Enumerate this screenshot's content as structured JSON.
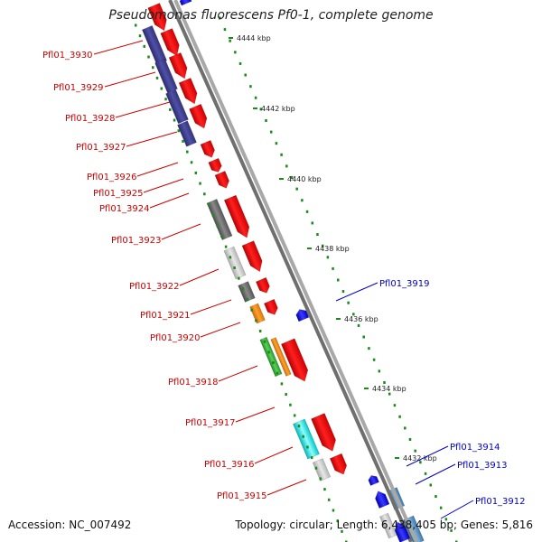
{
  "title": "Pseudomonas fluorescens Pf0-1, complete genome",
  "accession": "Accession: NC_007492",
  "summary": "Topology: circular; Length: 6,438,405 bp; Genes: 5,816",
  "scale_unit": "kbp",
  "ticks": [
    "4444 kbp",
    "4442 kbp",
    "4440 kbp",
    "4438 kbp",
    "4436 kbp",
    "4434 kbp",
    "4432 kbp"
  ],
  "colors": {
    "forward_label": "#cc0000",
    "reverse_label": "#0000cc",
    "forward_gene": "#ff0000",
    "reverse_gene": "#1a1aff",
    "cog_purple": "#3d3d8f",
    "cog_gray": "#6b6b6b",
    "cog_lightgray": "#c8c8c8",
    "cog_orange": "#ff8c00",
    "cog_green": "#3cb43c",
    "cog_cyan": "#00e5e5",
    "cog_steelblue": "#4682b4",
    "backbone": "#8a8a8a",
    "tick_dots": "#1a8a1a"
  },
  "forward_genes": [
    "Pfl01_3930",
    "Pfl01_3929",
    "Pfl01_3928",
    "Pfl01_3927",
    "Pfl01_3926",
    "Pfl01_3925",
    "Pfl01_3924",
    "Pfl01_3923",
    "Pfl01_3922",
    "Pfl01_3921",
    "Pfl01_3920",
    "Pfl01_3918",
    "Pfl01_3917",
    "Pfl01_3916",
    "Pfl01_3915"
  ],
  "reverse_genes": [
    "Pfl01_3919",
    "Pfl01_3914",
    "Pfl01_3913",
    "Pfl01_3912"
  ]
}
